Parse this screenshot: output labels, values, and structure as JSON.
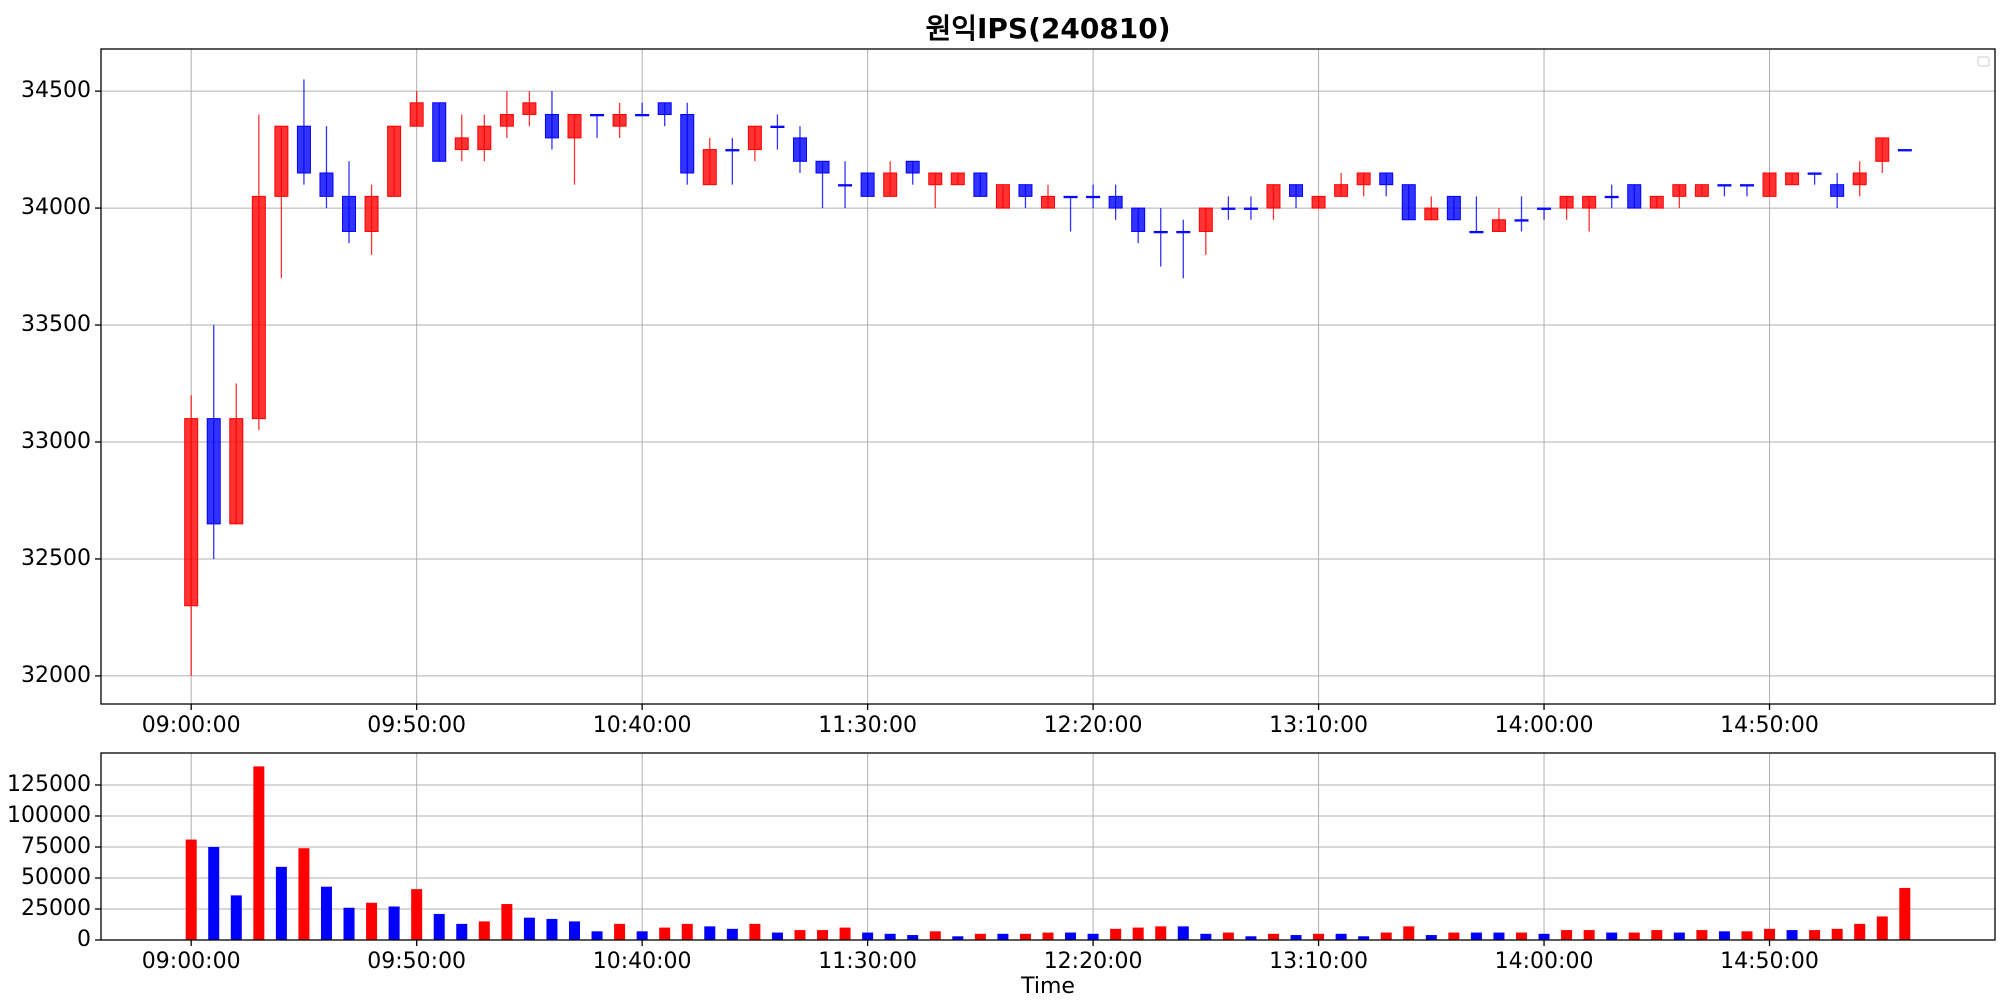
{
  "chart_data": [
    {
      "type": "candlestick",
      "title": "원익IPS(240810)",
      "x": [
        "09:00:00",
        "09:05:00",
        "09:10:00",
        "09:15:00",
        "09:20:00",
        "09:25:00",
        "09:30:00",
        "09:35:00",
        "09:40:00",
        "09:45:00",
        "09:50:00",
        "09:55:00",
        "10:00:00",
        "10:05:00",
        "10:10:00",
        "10:15:00",
        "10:20:00",
        "10:25:00",
        "10:30:00",
        "10:35:00",
        "10:40:00",
        "10:45:00",
        "10:50:00",
        "10:55:00",
        "11:00:00",
        "11:05:00",
        "11:10:00",
        "11:15:00",
        "11:20:00",
        "11:25:00",
        "11:30:00",
        "11:35:00",
        "11:40:00",
        "11:45:00",
        "11:50:00",
        "11:55:00",
        "12:00:00",
        "12:05:00",
        "12:10:00",
        "12:15:00",
        "12:20:00",
        "12:25:00",
        "12:30:00",
        "12:35:00",
        "12:40:00",
        "12:45:00",
        "12:50:00",
        "12:55:00",
        "13:00:00",
        "13:05:00",
        "13:10:00",
        "13:15:00",
        "13:20:00",
        "13:25:00",
        "13:30:00",
        "13:35:00",
        "13:40:00",
        "13:45:00",
        "13:50:00",
        "13:55:00",
        "14:00:00",
        "14:05:00",
        "14:10:00",
        "14:15:00",
        "14:20:00",
        "14:25:00",
        "14:30:00",
        "14:35:00",
        "14:40:00",
        "14:45:00",
        "14:50:00",
        "14:55:00",
        "15:00:00",
        "15:05:00",
        "15:10:00",
        "15:15:00",
        "15:20:00"
      ],
      "open": [
        32300,
        33100,
        32650,
        33100,
        34050,
        34350,
        34150,
        34050,
        33900,
        34050,
        34350,
        34450,
        34250,
        34250,
        34350,
        34400,
        34400,
        34300,
        34400,
        34350,
        34400,
        34450,
        34400,
        34100,
        34250,
        34250,
        34350,
        34300,
        34200,
        34100,
        34150,
        34050,
        34200,
        34100,
        34100,
        34150,
        34000,
        34100,
        34000,
        34050,
        34050,
        34050,
        34000,
        33900,
        33900,
        33900,
        34000,
        34000,
        34000,
        34100,
        34000,
        34050,
        34100,
        34150,
        34100,
        33950,
        34050,
        33900,
        33900,
        33950,
        34000,
        34000,
        34000,
        34050,
        34100,
        34000,
        34050,
        34050,
        34100,
        34100,
        34050,
        34100,
        34150,
        34100,
        34100,
        34200,
        34250
      ],
      "high": [
        33200,
        33500,
        33250,
        34400,
        34350,
        34550,
        34350,
        34200,
        34100,
        34350,
        34500,
        34450,
        34400,
        34400,
        34500,
        34500,
        34500,
        34400,
        34400,
        34450,
        34450,
        34450,
        34450,
        34300,
        34300,
        34350,
        34400,
        34350,
        34200,
        34200,
        34150,
        34200,
        34200,
        34150,
        34150,
        34150,
        34100,
        34100,
        34100,
        34050,
        34100,
        34100,
        34000,
        34000,
        33950,
        34000,
        34050,
        34050,
        34100,
        34100,
        34050,
        34150,
        34150,
        34150,
        34100,
        34050,
        34050,
        34050,
        34000,
        34050,
        34000,
        34050,
        34050,
        34100,
        34100,
        34050,
        34100,
        34100,
        34100,
        34100,
        34150,
        34150,
        34150,
        34150,
        34200,
        34300,
        34250
      ],
      "low": [
        32000,
        32500,
        32650,
        33050,
        33700,
        34100,
        34000,
        33850,
        33800,
        34050,
        34350,
        34200,
        34200,
        34200,
        34300,
        34350,
        34250,
        34100,
        34300,
        34300,
        34400,
        34350,
        34100,
        34100,
        34100,
        34200,
        34250,
        34150,
        34000,
        34000,
        34050,
        34050,
        34100,
        34000,
        34100,
        34050,
        34000,
        34000,
        34000,
        33900,
        34000,
        33950,
        33850,
        33750,
        33700,
        33800,
        33950,
        33950,
        33950,
        34000,
        34000,
        34050,
        34050,
        34050,
        33950,
        33950,
        33950,
        33900,
        33900,
        33900,
        33950,
        33950,
        33900,
        34000,
        34000,
        34000,
        34000,
        34050,
        34050,
        34050,
        34050,
        34100,
        34100,
        34000,
        34050,
        34150,
        34250
      ],
      "close": [
        33100,
        32650,
        33100,
        34050,
        34350,
        34150,
        34050,
        33900,
        34050,
        34350,
        34450,
        34200,
        34300,
        34350,
        34400,
        34450,
        34300,
        34400,
        34400,
        34400,
        34400,
        34400,
        34150,
        34250,
        34250,
        34350,
        34350,
        34200,
        34150,
        34100,
        34050,
        34150,
        34150,
        34150,
        34150,
        34050,
        34100,
        34050,
        34050,
        34050,
        34050,
        34000,
        33900,
        33900,
        33900,
        34000,
        34000,
        34000,
        34100,
        34050,
        34050,
        34100,
        34150,
        34100,
        33950,
        34000,
        33950,
        33900,
        33950,
        33950,
        34000,
        34050,
        34050,
        34050,
        34000,
        34050,
        34100,
        34100,
        34100,
        34100,
        34150,
        34150,
        34150,
        34050,
        34150,
        34300,
        34250
      ],
      "up_color": "red",
      "down_color": "blue",
      "xlim": [
        "08:40:00",
        "15:40:00"
      ],
      "xticks": [
        "09:00:00",
        "09:50:00",
        "10:40:00",
        "11:30:00",
        "12:20:00",
        "13:10:00",
        "14:00:00",
        "14:50:00"
      ],
      "ylim": [
        31880,
        34680
      ],
      "yticks": [
        32000,
        32500,
        33000,
        33500,
        34000,
        34500
      ],
      "grid": true
    },
    {
      "type": "bar",
      "x_label": "Time",
      "x": [
        "09:00:00",
        "09:05:00",
        "09:10:00",
        "09:15:00",
        "09:20:00",
        "09:25:00",
        "09:30:00",
        "09:35:00",
        "09:40:00",
        "09:45:00",
        "09:50:00",
        "09:55:00",
        "10:00:00",
        "10:05:00",
        "10:10:00",
        "10:15:00",
        "10:20:00",
        "10:25:00",
        "10:30:00",
        "10:35:00",
        "10:40:00",
        "10:45:00",
        "10:50:00",
        "10:55:00",
        "11:00:00",
        "11:05:00",
        "11:10:00",
        "11:15:00",
        "11:20:00",
        "11:25:00",
        "11:30:00",
        "11:35:00",
        "11:40:00",
        "11:45:00",
        "11:50:00",
        "11:55:00",
        "12:00:00",
        "12:05:00",
        "12:10:00",
        "12:15:00",
        "12:20:00",
        "12:25:00",
        "12:30:00",
        "12:35:00",
        "12:40:00",
        "12:45:00",
        "12:50:00",
        "12:55:00",
        "13:00:00",
        "13:05:00",
        "13:10:00",
        "13:15:00",
        "13:20:00",
        "13:25:00",
        "13:30:00",
        "13:35:00",
        "13:40:00",
        "13:45:00",
        "13:50:00",
        "13:55:00",
        "14:00:00",
        "14:05:00",
        "14:10:00",
        "14:15:00",
        "14:20:00",
        "14:25:00",
        "14:30:00",
        "14:35:00",
        "14:40:00",
        "14:45:00",
        "14:50:00",
        "14:55:00",
        "15:00:00",
        "15:05:00",
        "15:10:00",
        "15:15:00",
        "15:20:00"
      ],
      "values": [
        81000,
        75000,
        36000,
        140000,
        59000,
        74000,
        43000,
        26000,
        30000,
        27000,
        41000,
        21000,
        13000,
        15000,
        29000,
        18000,
        17000,
        15000,
        7000,
        13000,
        7000,
        10000,
        13000,
        11000,
        9000,
        13000,
        6000,
        8000,
        8000,
        10000,
        6000,
        5000,
        4000,
        7000,
        3000,
        5000,
        5000,
        5000,
        6000,
        6000,
        5000,
        9000,
        10000,
        11000,
        11000,
        5000,
        6000,
        3000,
        5000,
        4000,
        5000,
        5000,
        3000,
        6000,
        11000,
        4000,
        6000,
        6000,
        6000,
        6000,
        5000,
        8000,
        8000,
        6000,
        6000,
        8000,
        6000,
        8000,
        7000,
        7000,
        9000,
        8000,
        8000,
        9000,
        13000,
        19000,
        42000
      ],
      "colors": [
        "red",
        "blue",
        "blue",
        "red",
        "blue",
        "red",
        "blue",
        "blue",
        "red",
        "blue",
        "red",
        "blue",
        "blue",
        "red",
        "red",
        "blue",
        "blue",
        "blue",
        "blue",
        "red",
        "blue",
        "red",
        "red",
        "blue",
        "blue",
        "red",
        "blue",
        "red",
        "red",
        "red",
        "blue",
        "blue",
        "blue",
        "red",
        "blue",
        "red",
        "blue",
        "red",
        "red",
        "blue",
        "blue",
        "red",
        "red",
        "red",
        "blue",
        "blue",
        "red",
        "blue",
        "red",
        "blue",
        "red",
        "blue",
        "blue",
        "red",
        "red",
        "blue",
        "red",
        "blue",
        "blue",
        "red",
        "blue",
        "red",
        "red",
        "blue",
        "red",
        "red",
        "blue",
        "red",
        "blue",
        "red",
        "red",
        "blue",
        "red",
        "red",
        "red",
        "red",
        "red"
      ],
      "xlim": [
        "08:40:00",
        "15:40:00"
      ],
      "xticks": [
        "09:00:00",
        "09:50:00",
        "10:40:00",
        "11:30:00",
        "12:20:00",
        "13:10:00",
        "14:00:00",
        "14:50:00"
      ],
      "ylim": [
        0,
        150800
      ],
      "yticks": [
        0,
        25000,
        50000,
        75000,
        100000,
        125000
      ],
      "grid": true
    }
  ]
}
